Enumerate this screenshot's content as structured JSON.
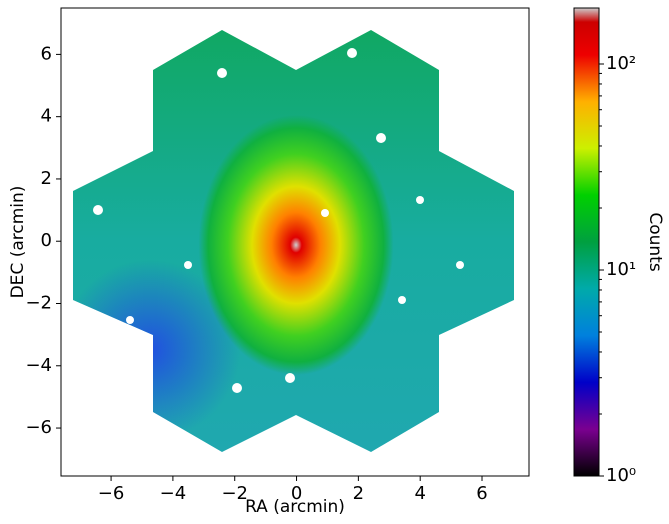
{
  "chart_data": {
    "type": "image",
    "xlabel": "RA (arcmin)",
    "ylabel": "DEC (arcmin)",
    "xlim": [
      -7.62,
      7.52
    ],
    "ylim": [
      -7.54,
      7.49
    ],
    "xticks": [
      {
        "value": -6,
        "label": "−6"
      },
      {
        "value": -4,
        "label": "−4"
      },
      {
        "value": -2,
        "label": "−2"
      },
      0,
      2,
      4,
      6
    ],
    "yticks": [
      {
        "value": -6,
        "label": "−6"
      },
      {
        "value": -4,
        "label": "−4"
      },
      {
        "value": -2,
        "label": "−2"
      },
      0,
      2,
      4,
      6
    ],
    "colorbar": {
      "label": "Counts",
      "scale": "log",
      "lim": [
        1,
        187
      ],
      "ticks": [
        {
          "value": 1,
          "label": "10⁰"
        },
        {
          "value": 10,
          "label": "10¹"
        },
        {
          "value": 100,
          "label": "10²"
        }
      ]
    }
  }
}
